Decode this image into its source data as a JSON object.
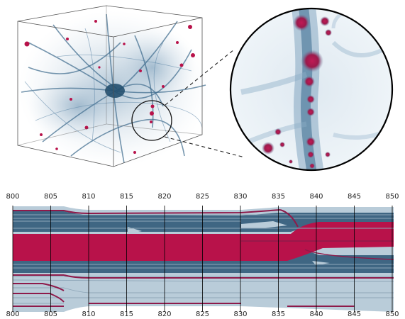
{
  "colors": {
    "background": "#ffffff",
    "light_band": "#b9ccd9",
    "dark_band": "#3f6683",
    "accent": "#b8124a",
    "halo_blue": "#2e5f82",
    "box_edge": "#555555",
    "grid_line": "#000000"
  },
  "cube": {
    "description_icon": "simulation-cube-icon"
  },
  "zoom": {
    "description_icon": "zoom-circle-icon"
  },
  "timeline": {
    "axis_min": 800,
    "axis_max": 850,
    "ticks_top": [
      "800",
      "805",
      "810",
      "815",
      "820",
      "825",
      "830",
      "835",
      "840",
      "845",
      "850"
    ],
    "ticks_bottom": [
      "800",
      "805",
      "810",
      "815",
      "820",
      "825",
      "830",
      "835",
      "840",
      "845",
      "850"
    ],
    "tick_values": [
      800,
      805,
      810,
      815,
      820,
      825,
      830,
      835,
      840,
      845,
      850
    ]
  }
}
